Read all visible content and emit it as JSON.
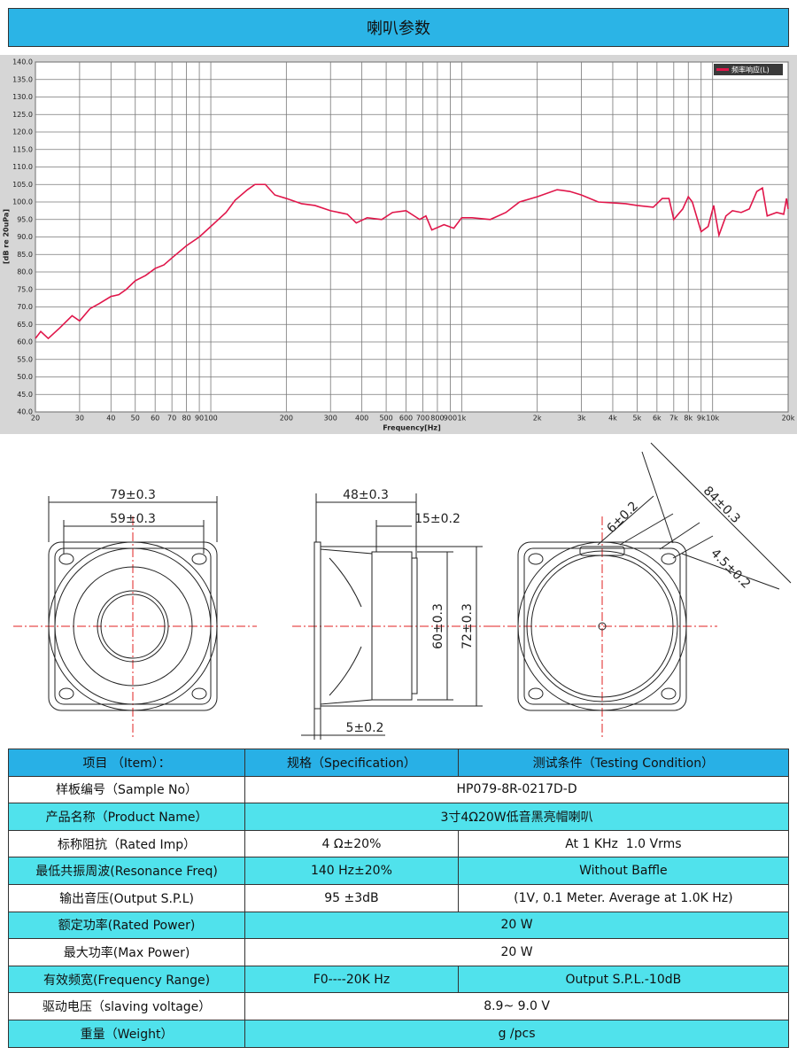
{
  "header": {
    "title": "喇叭参数"
  },
  "chart_data": {
    "type": "line",
    "xlabel": "Frequency[Hz]",
    "ylabel": "[dB re 20uPa]",
    "xscale": "log",
    "grid": true,
    "legend": "upper right",
    "xlim": [
      20,
      20000
    ],
    "ylim": [
      40,
      140
    ],
    "xticks": [
      20,
      30,
      40,
      50,
      60,
      70,
      80,
      90,
      100,
      200,
      300,
      400,
      500,
      600,
      700,
      800,
      900,
      {
        "value": 1000,
        "label": "1k"
      },
      {
        "value": 2000,
        "label": "2k"
      },
      {
        "value": 3000,
        "label": "3k"
      },
      {
        "value": 4000,
        "label": "4k"
      },
      {
        "value": 5000,
        "label": "5k"
      },
      {
        "value": 6000,
        "label": "6k"
      },
      {
        "value": 7000,
        "label": "7k"
      },
      {
        "value": 8000,
        "label": "8k"
      },
      {
        "value": 9000,
        "label": "9k"
      },
      {
        "value": 10000,
        "label": "10k"
      },
      {
        "value": 20000,
        "label": "20k"
      }
    ],
    "yticks": [
      {
        "value": 40,
        "label": "40.0"
      },
      {
        "value": 45,
        "label": "45.0"
      },
      {
        "value": 50,
        "label": "50.0"
      },
      {
        "value": 55,
        "label": "55.0"
      },
      {
        "value": 60,
        "label": "60.0"
      },
      {
        "value": 65,
        "label": "65.0"
      },
      {
        "value": 70,
        "label": "70.0"
      },
      {
        "value": 75,
        "label": "75.0"
      },
      {
        "value": 80,
        "label": "80.0"
      },
      {
        "value": 85,
        "label": "85.0"
      },
      {
        "value": 90,
        "label": "90.0"
      },
      {
        "value": 95,
        "label": "95.0"
      },
      {
        "value": 100,
        "label": "100.0"
      },
      {
        "value": 105,
        "label": "105.0"
      },
      {
        "value": 110,
        "label": "110.0"
      },
      {
        "value": 115,
        "label": "115.0"
      },
      {
        "value": 120,
        "label": "120.0"
      },
      {
        "value": 125,
        "label": "125.0"
      },
      {
        "value": 130,
        "label": "130.0"
      },
      {
        "value": 135,
        "label": "135.0"
      },
      {
        "value": 140,
        "label": "140.0"
      }
    ],
    "x": [
      20,
      21,
      22.5,
      25,
      28,
      30,
      33,
      36,
      40,
      43,
      46,
      50,
      55,
      60,
      65,
      70,
      80,
      90,
      100,
      115,
      125,
      140,
      150,
      165,
      180,
      200,
      230,
      260,
      300,
      350,
      380,
      420,
      480,
      530,
      600,
      680,
      720,
      760,
      850,
      930,
      1000,
      1100,
      1300,
      1500,
      1700,
      2000,
      2400,
      2700,
      3000,
      3500,
      4500,
      5000,
      5800,
      6300,
      6700,
      7000,
      7600,
      8000,
      8300,
      9000,
      9600,
      10100,
      10600,
      11300,
      12000,
      13000,
      14000,
      15000,
      15800,
      16500,
      18000,
      19200,
      19700,
      20000
    ],
    "series": [
      {
        "name": "频率响应(L)",
        "color": "#e0164a",
        "values": [
          61,
          63,
          61,
          64,
          67.5,
          66,
          69.5,
          71,
          73,
          73.5,
          75,
          77.5,
          79,
          81,
          82,
          84,
          87.5,
          90,
          93,
          97,
          100.5,
          103.5,
          105,
          105,
          102,
          101,
          99.5,
          99,
          97.5,
          96.5,
          94,
          95.5,
          95,
          97,
          97.5,
          95,
          96,
          92,
          93.5,
          92.5,
          95.5,
          95.5,
          95,
          97,
          100,
          101.5,
          103.5,
          103,
          102,
          100,
          99.5,
          99,
          98.5,
          101,
          101,
          95,
          98,
          101.5,
          100,
          91.5,
          93,
          99,
          90.5,
          96,
          97.5,
          97,
          98,
          103,
          104,
          96,
          97,
          96.5,
          101,
          98
        ]
      }
    ]
  },
  "drawings": {
    "front": {
      "outer": "79±0.3",
      "inner": "59±0.3"
    },
    "side": {
      "depth": "48±0.3",
      "magnet": "15±0.2",
      "magnet_dia": "60±0.3",
      "frame": "72±0.3",
      "flange": "5±0.2"
    },
    "back": {
      "diagonal": "84±0.3",
      "terminal": "6±0.2",
      "hole": "4.5±0.2"
    }
  },
  "table": {
    "header": [
      "项目 （Item）：",
      "规格（Specification）",
      "测试条件（Testing Condition）"
    ],
    "rows": [
      [
        "样板编号（Sample No）",
        "HP079-8R-0217D-D"
      ],
      [
        "产品名称（Product Name）",
        "3寸4Ω20W低音黑亮帽喇叭"
      ],
      [
        "标称阻抗（Rated Imp）",
        "4 Ω±20%",
        "At 1 KHz  1.0 Vrms"
      ],
      [
        "最低共振周波(Resonance Freq)",
        "140 Hz±20%",
        "Without Baffle"
      ],
      [
        "输出音压(Output S.P.L)",
        "95 ±3dB",
        "(1V, 0.1 Meter. Average at 1.0K Hz)"
      ],
      [
        "额定功率(Rated Power)",
        "20 W"
      ],
      [
        "最大功率(Max Power)",
        "20 W"
      ],
      [
        "有效频宽(Frequency Range)",
        "F0----20K Hz",
        "Output S.P.L.-10dB"
      ],
      [
        "驱动电压（slaving voltage）",
        "8.9~ 9.0 V"
      ],
      [
        "重量（Weight）",
        "g /pcs"
      ]
    ]
  }
}
